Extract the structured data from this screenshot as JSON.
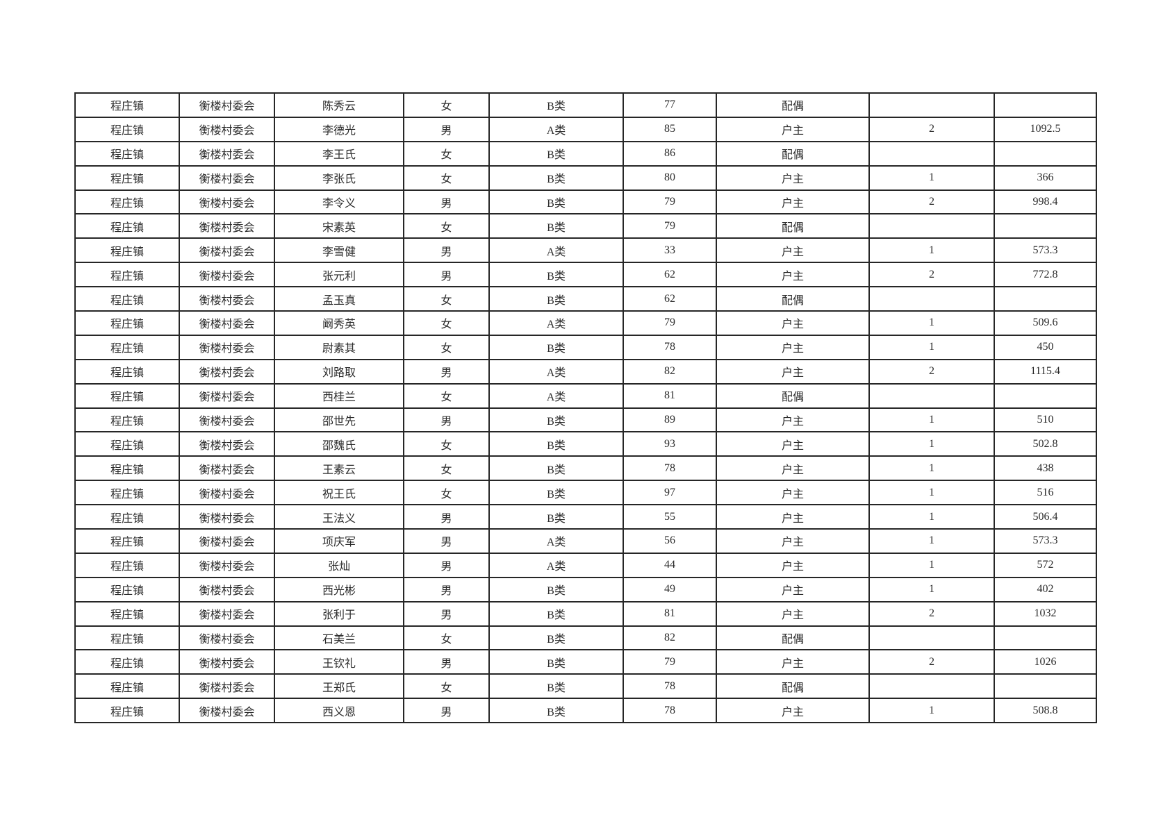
{
  "colors": {
    "background": "#ffffff",
    "border": "#262626",
    "text": "#2b2b2b"
  },
  "table": {
    "column_keys": [
      "town",
      "village",
      "name",
      "gender",
      "category",
      "age",
      "relation",
      "household_size",
      "amount"
    ],
    "rows": [
      {
        "town": "程庄镇",
        "village": "衡楼村委会",
        "name": "陈秀云",
        "gender": "女",
        "category": "B类",
        "age": "77",
        "relation": "配偶",
        "household_size": "",
        "amount": ""
      },
      {
        "town": "程庄镇",
        "village": "衡楼村委会",
        "name": "李德光",
        "gender": "男",
        "category": "A类",
        "age": "85",
        "relation": "户主",
        "household_size": "2",
        "amount": "1092.5"
      },
      {
        "town": "程庄镇",
        "village": "衡楼村委会",
        "name": "李王氏",
        "gender": "女",
        "category": "B类",
        "age": "86",
        "relation": "配偶",
        "household_size": "",
        "amount": ""
      },
      {
        "town": "程庄镇",
        "village": "衡楼村委会",
        "name": "李张氏",
        "gender": "女",
        "category": "B类",
        "age": "80",
        "relation": "户主",
        "household_size": "1",
        "amount": "366"
      },
      {
        "town": "程庄镇",
        "village": "衡楼村委会",
        "name": "李令义",
        "gender": "男",
        "category": "B类",
        "age": "79",
        "relation": "户主",
        "household_size": "2",
        "amount": "998.4"
      },
      {
        "town": "程庄镇",
        "village": "衡楼村委会",
        "name": "宋素英",
        "gender": "女",
        "category": "B类",
        "age": "79",
        "relation": "配偶",
        "household_size": "",
        "amount": ""
      },
      {
        "town": "程庄镇",
        "village": "衡楼村委会",
        "name": "李雪健",
        "gender": "男",
        "category": "A类",
        "age": "33",
        "relation": "户主",
        "household_size": "1",
        "amount": "573.3"
      },
      {
        "town": "程庄镇",
        "village": "衡楼村委会",
        "name": "张元利",
        "gender": "男",
        "category": "B类",
        "age": "62",
        "relation": "户主",
        "household_size": "2",
        "amount": "772.8"
      },
      {
        "town": "程庄镇",
        "village": "衡楼村委会",
        "name": "孟玉真",
        "gender": "女",
        "category": "B类",
        "age": "62",
        "relation": "配偶",
        "household_size": "",
        "amount": ""
      },
      {
        "town": "程庄镇",
        "village": "衡楼村委会",
        "name": "阚秀英",
        "gender": "女",
        "category": "A类",
        "age": "79",
        "relation": "户主",
        "household_size": "1",
        "amount": "509.6"
      },
      {
        "town": "程庄镇",
        "village": "衡楼村委会",
        "name": "尉素其",
        "gender": "女",
        "category": "B类",
        "age": "78",
        "relation": "户主",
        "household_size": "1",
        "amount": "450"
      },
      {
        "town": "程庄镇",
        "village": "衡楼村委会",
        "name": "刘路取",
        "gender": "男",
        "category": "A类",
        "age": "82",
        "relation": "户主",
        "household_size": "2",
        "amount": "1115.4"
      },
      {
        "town": "程庄镇",
        "village": "衡楼村委会",
        "name": "西桂兰",
        "gender": "女",
        "category": "A类",
        "age": "81",
        "relation": "配偶",
        "household_size": "",
        "amount": ""
      },
      {
        "town": "程庄镇",
        "village": "衡楼村委会",
        "name": "邵世先",
        "gender": "男",
        "category": "B类",
        "age": "89",
        "relation": "户主",
        "household_size": "1",
        "amount": "510"
      },
      {
        "town": "程庄镇",
        "village": "衡楼村委会",
        "name": "邵魏氏",
        "gender": "女",
        "category": "B类",
        "age": "93",
        "relation": "户主",
        "household_size": "1",
        "amount": "502.8"
      },
      {
        "town": "程庄镇",
        "village": "衡楼村委会",
        "name": "王素云",
        "gender": "女",
        "category": "B类",
        "age": "78",
        "relation": "户主",
        "household_size": "1",
        "amount": "438"
      },
      {
        "town": "程庄镇",
        "village": "衡楼村委会",
        "name": "祝王氏",
        "gender": "女",
        "category": "B类",
        "age": "97",
        "relation": "户主",
        "household_size": "1",
        "amount": "516"
      },
      {
        "town": "程庄镇",
        "village": "衡楼村委会",
        "name": "王法义",
        "gender": "男",
        "category": "B类",
        "age": "55",
        "relation": "户主",
        "household_size": "1",
        "amount": "506.4"
      },
      {
        "town": "程庄镇",
        "village": "衡楼村委会",
        "name": "项庆军",
        "gender": "男",
        "category": "A类",
        "age": "56",
        "relation": "户主",
        "household_size": "1",
        "amount": "573.3"
      },
      {
        "town": "程庄镇",
        "village": "衡楼村委会",
        "name": "张灿",
        "gender": "男",
        "category": "A类",
        "age": "44",
        "relation": "户主",
        "household_size": "1",
        "amount": "572"
      },
      {
        "town": "程庄镇",
        "village": "衡楼村委会",
        "name": "西光彬",
        "gender": "男",
        "category": "B类",
        "age": "49",
        "relation": "户主",
        "household_size": "1",
        "amount": "402"
      },
      {
        "town": "程庄镇",
        "village": "衡楼村委会",
        "name": "张利于",
        "gender": "男",
        "category": "B类",
        "age": "81",
        "relation": "户主",
        "household_size": "2",
        "amount": "1032"
      },
      {
        "town": "程庄镇",
        "village": "衡楼村委会",
        "name": "石美兰",
        "gender": "女",
        "category": "B类",
        "age": "82",
        "relation": "配偶",
        "household_size": "",
        "amount": ""
      },
      {
        "town": "程庄镇",
        "village": "衡楼村委会",
        "name": "王钦礼",
        "gender": "男",
        "category": "B类",
        "age": "79",
        "relation": "户主",
        "household_size": "2",
        "amount": "1026"
      },
      {
        "town": "程庄镇",
        "village": "衡楼村委会",
        "name": "王郑氏",
        "gender": "女",
        "category": "B类",
        "age": "78",
        "relation": "配偶",
        "household_size": "",
        "amount": ""
      },
      {
        "town": "程庄镇",
        "village": "衡楼村委会",
        "name": "西义恩",
        "gender": "男",
        "category": "B类",
        "age": "78",
        "relation": "户主",
        "household_size": "1",
        "amount": "508.8"
      }
    ]
  }
}
